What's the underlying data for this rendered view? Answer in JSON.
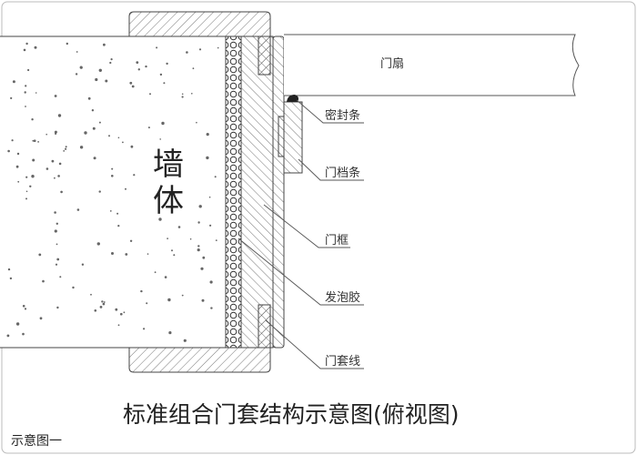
{
  "diagram": {
    "wall_label": [
      "墙",
      "体"
    ],
    "labels": {
      "door_leaf": "门扇",
      "seal_strip": "密封条",
      "door_stop": "门档条",
      "door_frame": "门框",
      "foam": "发泡胶",
      "casing": "门套线"
    },
    "title": "标准组合门套结构示意图(俯视图)",
    "caption": "示意图一"
  }
}
